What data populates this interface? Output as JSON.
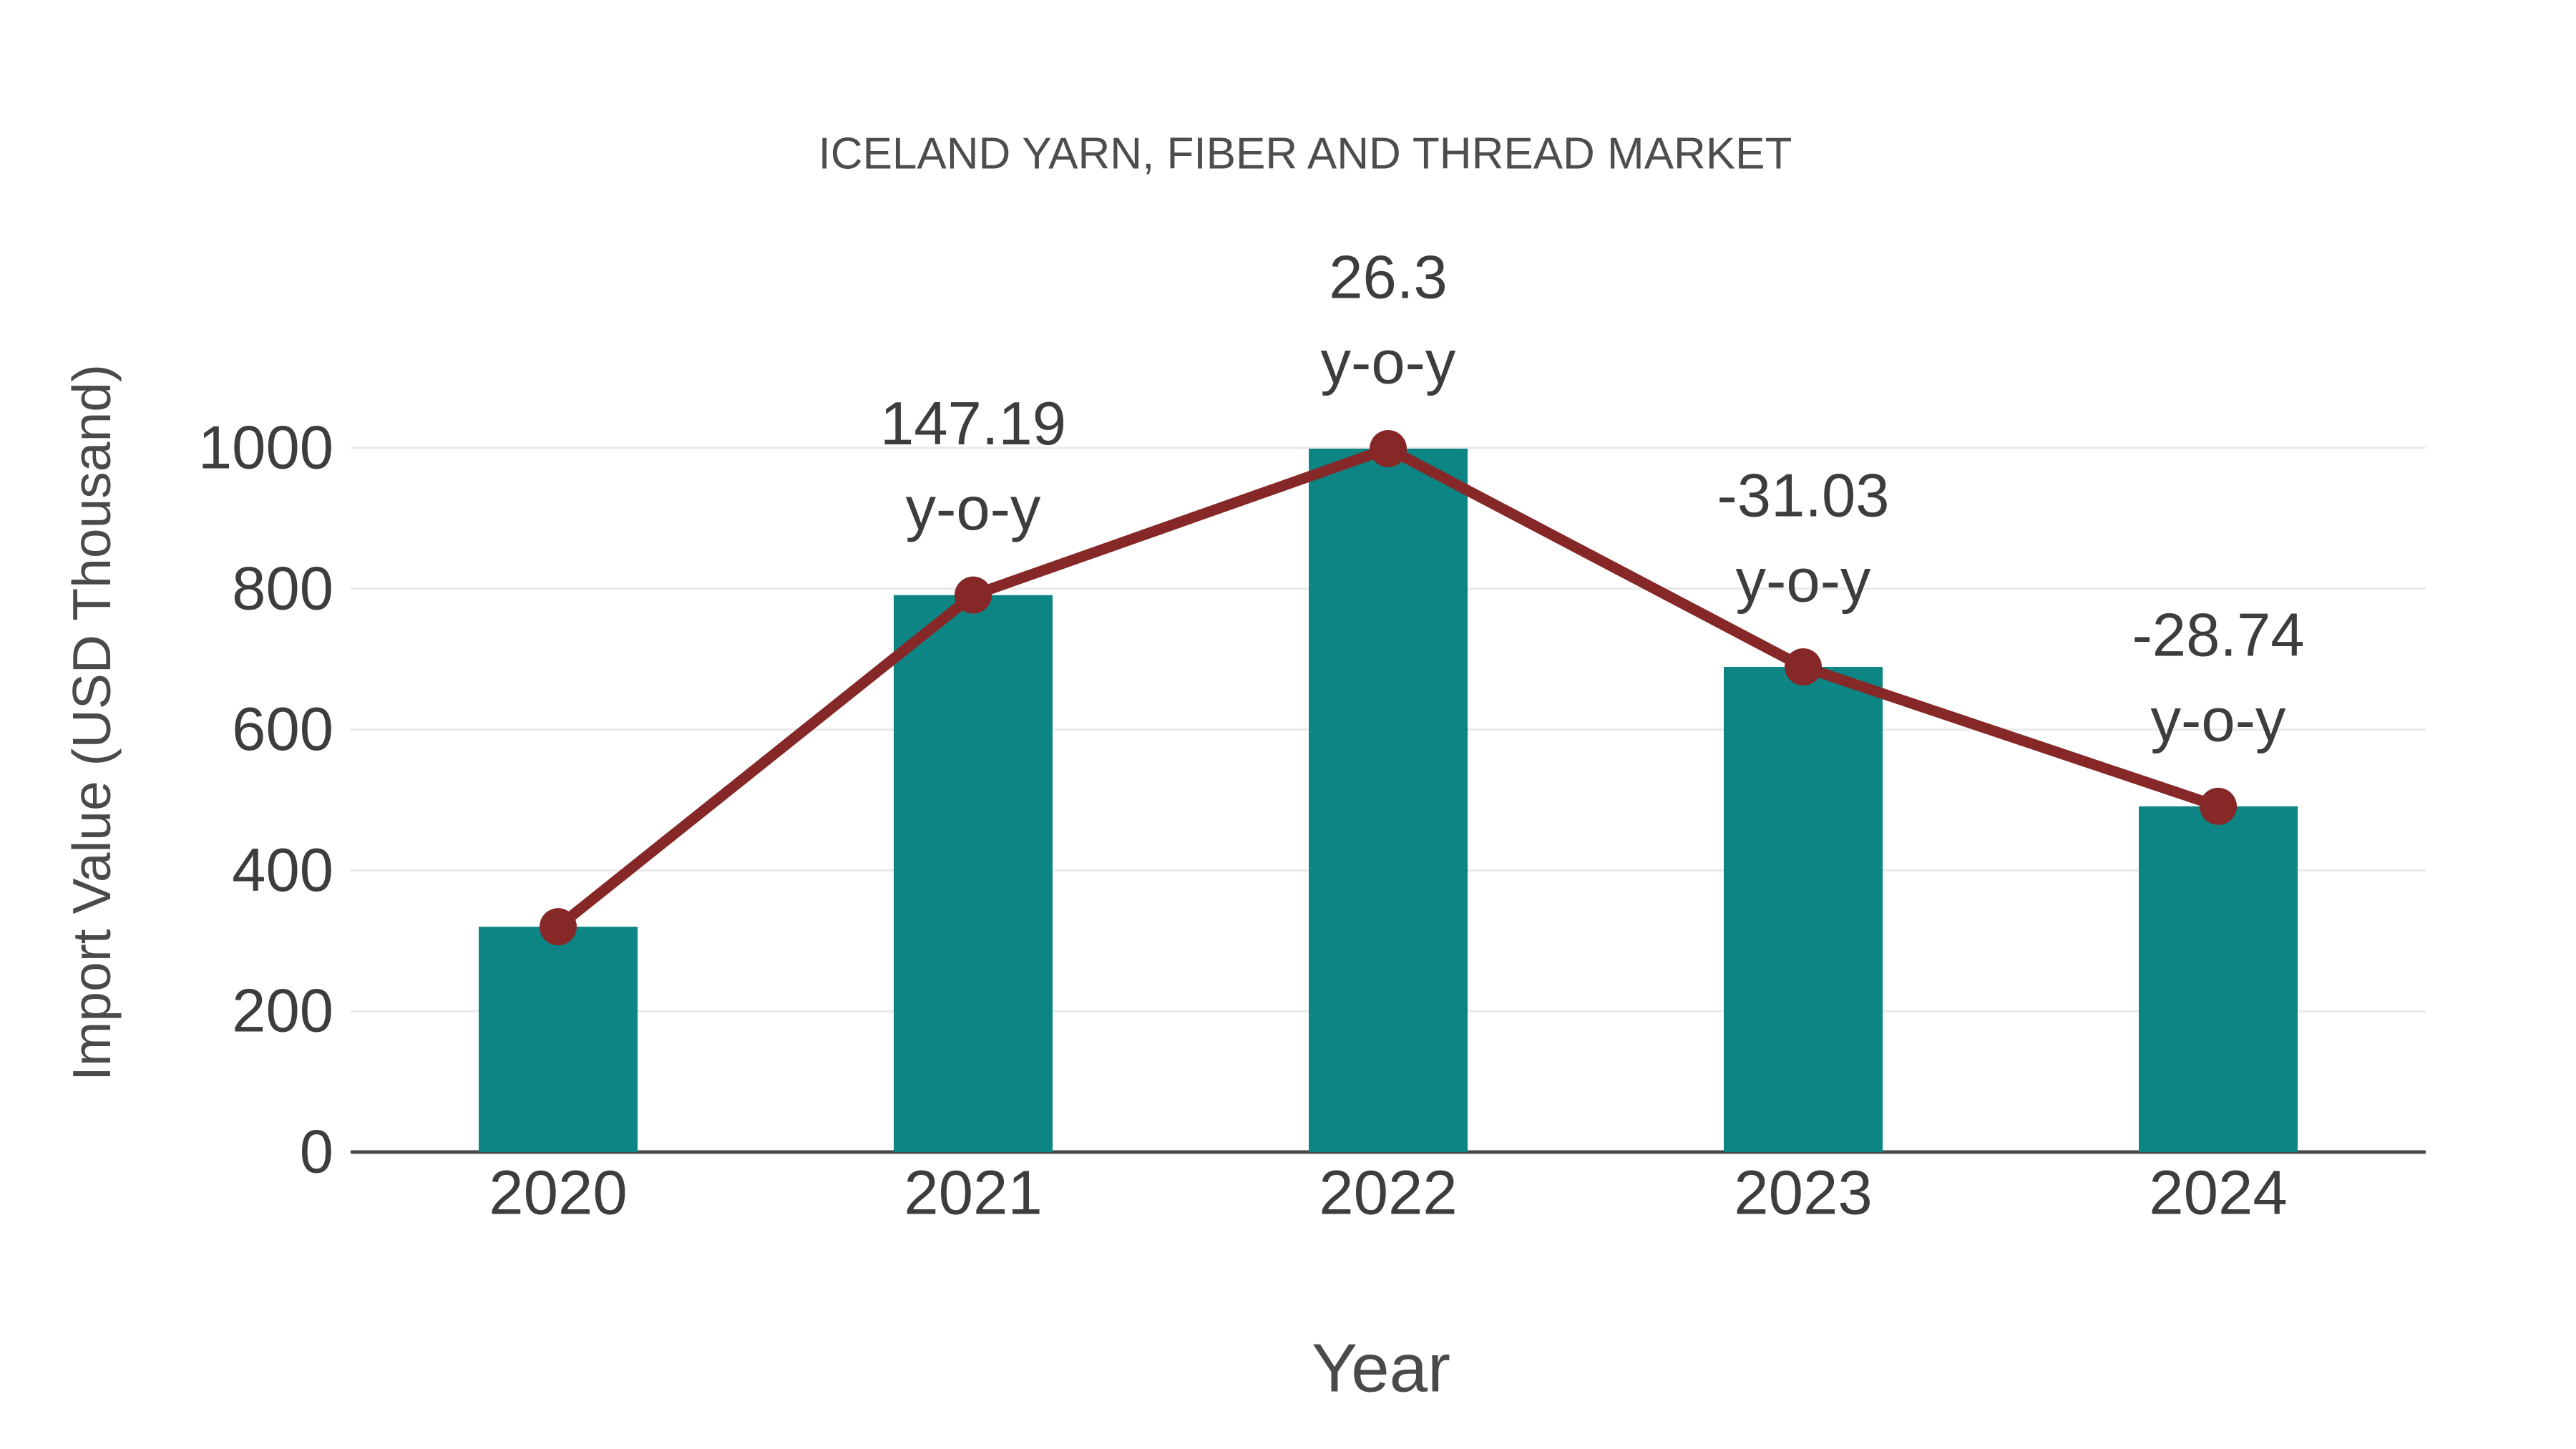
{
  "chart_data": {
    "type": "bar",
    "title": "ICELAND YARN, FIBER AND THREAD MARKET",
    "xlabel": "Year",
    "ylabel": "Import Value (USD Thousand)",
    "categories": [
      "2020",
      "2021",
      "2022",
      "2023",
      "2024"
    ],
    "series": [
      {
        "name": "Import Value (USD Thousand)",
        "type": "bar",
        "color": "#0e8585",
        "values": [
          320,
          791,
          999,
          689,
          491
        ]
      },
      {
        "name": "y-o-y change",
        "type": "line",
        "color": "#862828",
        "values": [
          320,
          791,
          999,
          689,
          491
        ],
        "point_labels": [
          "",
          "147.19",
          "26.3",
          "-31.03",
          "-28.74"
        ],
        "point_label_suffix": "y-o-y"
      }
    ],
    "yticks": [
      0,
      200,
      400,
      600,
      800,
      1000
    ],
    "ylim": [
      0,
      1120
    ],
    "grid": "horizontal",
    "legend": "none"
  },
  "style": {
    "bar_color": "#0e8585",
    "line_color": "#862828",
    "grid_color": "#e9e9e9",
    "axis_color": "#4a4a4a",
    "text_color": "#3d3d3d",
    "title_color": "#4d4d4d",
    "background": "#ffffff"
  }
}
